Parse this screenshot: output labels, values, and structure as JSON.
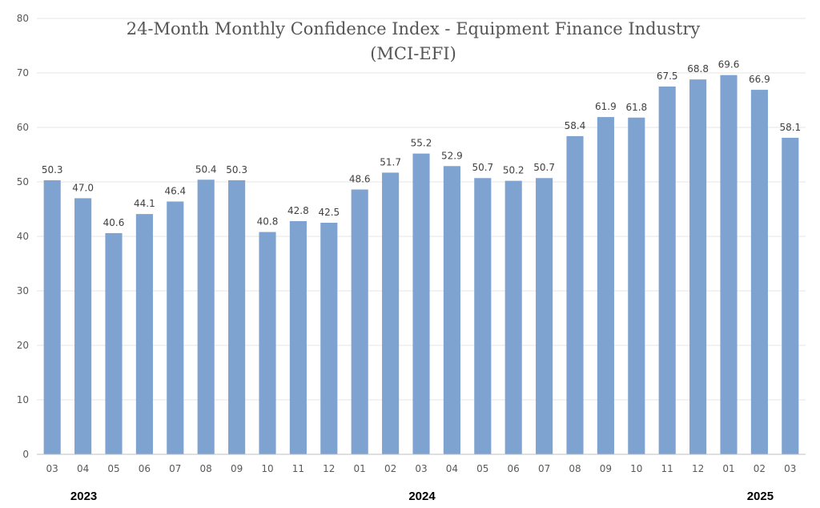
{
  "chart_data": {
    "type": "bar",
    "title": [
      "24-Month Monthly Confidence Index - Equipment Finance Industry",
      "(MCI-EFI)"
    ],
    "categories": [
      "03",
      "04",
      "05",
      "06",
      "07",
      "08",
      "09",
      "10",
      "11",
      "12",
      "01",
      "02",
      "03",
      "04",
      "05",
      "06",
      "07",
      "08",
      "09",
      "10",
      "11",
      "12",
      "01",
      "02",
      "03"
    ],
    "values": [
      50.3,
      47.0,
      40.6,
      44.1,
      46.4,
      50.4,
      50.3,
      40.8,
      42.8,
      42.5,
      48.6,
      51.7,
      55.2,
      52.9,
      50.7,
      50.2,
      50.7,
      58.4,
      61.9,
      61.8,
      67.5,
      68.8,
      69.6,
      66.9,
      58.1
    ],
    "data_labels": [
      "50.3",
      "47.0",
      "40.6",
      "44.1",
      "46.4",
      "50.4",
      "50.3",
      "40.8",
      "42.8",
      "42.5",
      "48.6",
      "51.7",
      "55.2",
      "52.9",
      "50.7",
      "50.2",
      "50.7",
      "58.4",
      "61.9",
      "61.8",
      "67.5",
      "68.8",
      "69.6",
      "66.9",
      "58.1"
    ],
    "year_groups": [
      {
        "label": "2023",
        "start_index": 0,
        "end_index": 9,
        "anchor_index": 1
      },
      {
        "label": "2024",
        "start_index": 10,
        "end_index": 21,
        "anchor_index": 12
      },
      {
        "label": "2025",
        "start_index": 22,
        "end_index": 24,
        "anchor_index": 23
      }
    ],
    "ylim": [
      0,
      80
    ],
    "yticks": [
      0,
      10,
      20,
      30,
      40,
      50,
      60,
      70,
      80
    ],
    "xlabel": "",
    "ylabel": "",
    "grid": true,
    "legend": "none",
    "bar_color": "#7fa3d0"
  }
}
